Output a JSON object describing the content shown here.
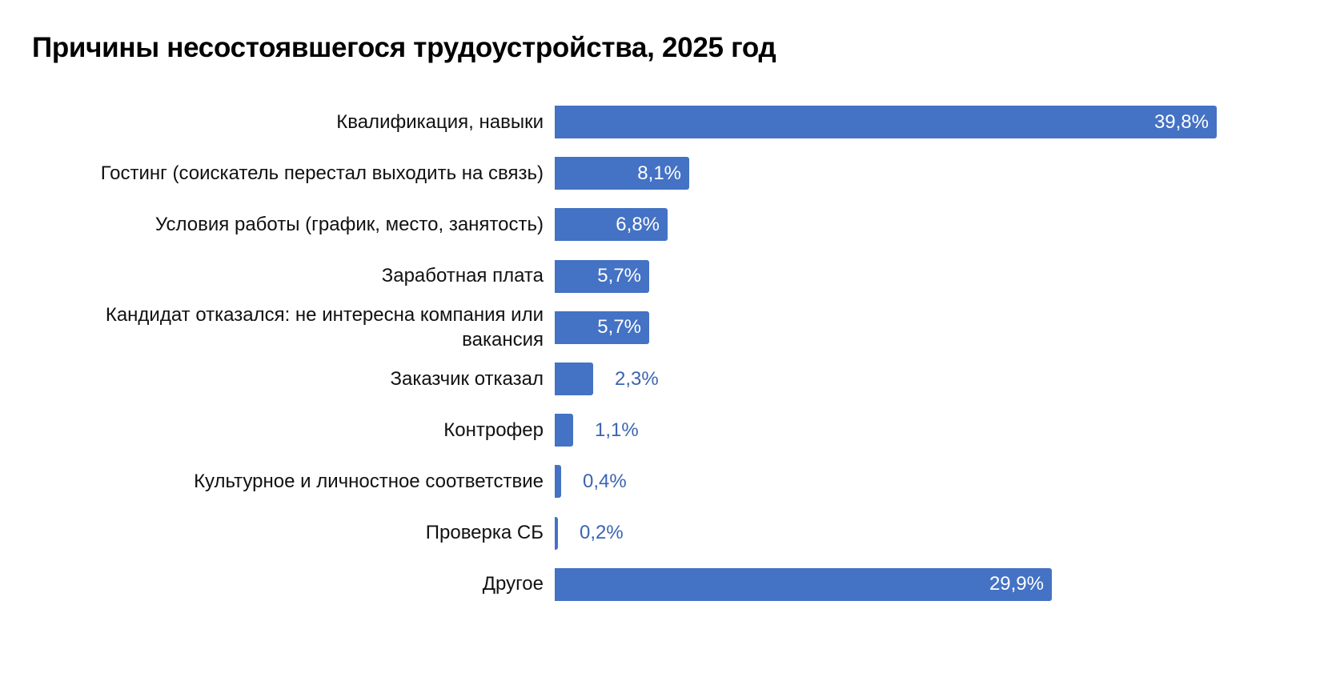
{
  "title": "Причины несостоявшегося трудоустройства, 2025 год",
  "colors": {
    "bar": "#4472c4",
    "label_inside": "#ffffff",
    "label_outside": "#3b64b0"
  },
  "chart_data": {
    "type": "bar",
    "orientation": "horizontal",
    "title": "Причины несостоявшегося трудоустройства, 2025 год",
    "xlabel": "",
    "ylabel": "",
    "unit": "%",
    "grid": false,
    "legend": null,
    "categories": [
      "Квалификация, навыки",
      "Гостинг (соискатель перестал выходить на связь)",
      "Условия работы (график, место, занятость)",
      "Заработная плата",
      "Кандидат отказался: не интересна компания или вакансия",
      "Заказчик отказал",
      "Контрофер",
      "Культурное и личностное соответствие",
      "Проверка СБ",
      "Другое"
    ],
    "values": [
      39.8,
      8.1,
      6.8,
      5.7,
      5.7,
      2.3,
      1.1,
      0.4,
      0.2,
      29.9
    ],
    "labels": [
      "39,8%",
      "8,1%",
      "6,8%",
      "5,7%",
      "5,7%",
      "2,3%",
      "1,1%",
      "0,4%",
      "0,2%",
      "29,9%"
    ],
    "xlim": [
      0,
      39.8
    ]
  },
  "rows": [
    {
      "category": "Квалификация, навыки",
      "label": "39,8%"
    },
    {
      "category": "Гостинг (соискатель перестал выходить на связь)",
      "label": "8,1%"
    },
    {
      "category": "Условия работы (график, место, занятость)",
      "label": "6,8%"
    },
    {
      "category": "Заработная плата",
      "label": "5,7%"
    },
    {
      "category": "Кандидат отказался: не интересна компания или вакансия",
      "label": "5,7%"
    },
    {
      "category": "Заказчик отказал",
      "label": "2,3%"
    },
    {
      "category": "Контрофер",
      "label": "1,1%"
    },
    {
      "category": "Культурное и личностное соответствие",
      "label": "0,4%"
    },
    {
      "category": "Проверка СБ",
      "label": "0,2%"
    },
    {
      "category": "Другое",
      "label": "29,9%"
    }
  ]
}
